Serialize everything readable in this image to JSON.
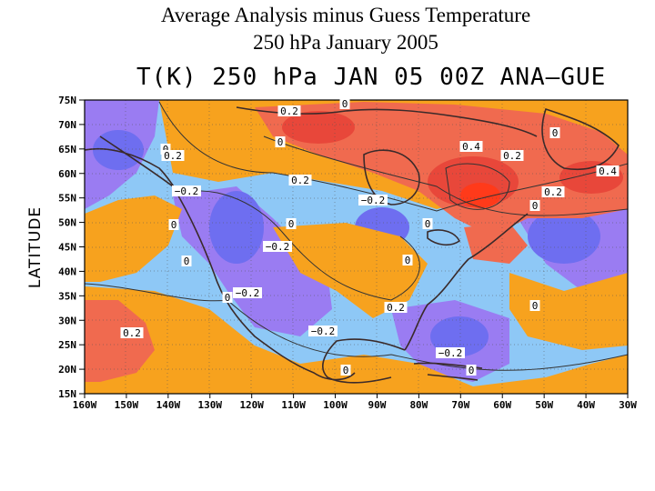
{
  "slide_title": {
    "line1": "Average Analysis minus Guess Temperature",
    "line2": "250 hPa January 2005"
  },
  "plot": {
    "title": "T(K) 250 hPa JAN 05 00Z ANA–GUE",
    "y_axis_title": "LATITUDE",
    "lat_ticks": [
      "75N",
      "70N",
      "65N",
      "60N",
      "55N",
      "50N",
      "45N",
      "40N",
      "35N",
      "30N",
      "25N",
      "20N",
      "15N"
    ],
    "lon_ticks": [
      "160W",
      "150W",
      "140W",
      "130W",
      "120W",
      "110W",
      "100W",
      "90W",
      "80W",
      "70W",
      "60W",
      "50W",
      "40W",
      "30W"
    ],
    "contour_labels": [
      {
        "text": "0"
      },
      {
        "text": "0.2"
      },
      {
        "text": "0"
      },
      {
        "text": "0.2"
      },
      {
        "text": "0"
      },
      {
        "text": "0.2"
      },
      {
        "text": "0.4"
      },
      {
        "text": "0.2"
      },
      {
        "text": "0.4"
      },
      {
        "text": "0.2"
      },
      {
        "text": "0"
      },
      {
        "text": "−0.2"
      },
      {
        "text": "0"
      },
      {
        "text": "−0.2"
      },
      {
        "text": "0"
      },
      {
        "text": "0"
      },
      {
        "text": "−0.2"
      },
      {
        "text": "0"
      },
      {
        "text": "0"
      },
      {
        "text": "0"
      },
      {
        "text": "0.2"
      },
      {
        "text": "0"
      },
      {
        "text": "−0.2"
      },
      {
        "text": "0.2"
      },
      {
        "text": "−0.2"
      },
      {
        "text": "0"
      },
      {
        "text": "−0.2"
      },
      {
        "text": "0"
      },
      {
        "text": "0"
      }
    ]
  },
  "colors": {
    "strong_cold": "#6e6ef0",
    "cold": "#9a7cf2",
    "cool": "#8ec8f6",
    "warm": "#f7a21e",
    "hot": "#f06a4f",
    "very_hot": "#e8473a",
    "hottest": "#ff3a1a"
  }
}
